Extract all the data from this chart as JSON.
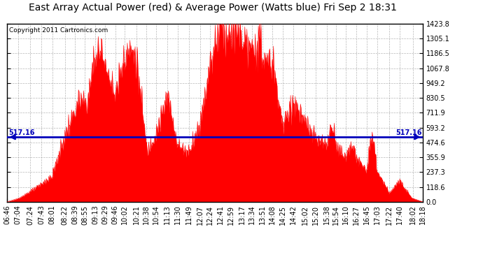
{
  "title": "East Array Actual Power (red) & Average Power (Watts blue) Fri Sep 2 18:31",
  "copyright": "Copyright 2011 Cartronics.com",
  "average_power": 517.16,
  "ymax": 1423.8,
  "yticks": [
    0.0,
    118.6,
    237.3,
    355.9,
    474.6,
    593.2,
    711.9,
    830.5,
    949.2,
    1067.8,
    1186.5,
    1305.1,
    1423.8
  ],
  "xtick_labels": [
    "06:46",
    "07:04",
    "07:24",
    "07:43",
    "08:01",
    "08:22",
    "08:39",
    "08:55",
    "09:13",
    "09:29",
    "09:46",
    "10:02",
    "10:21",
    "10:38",
    "10:54",
    "11:13",
    "11:30",
    "11:49",
    "12:07",
    "12:24",
    "12:41",
    "12:59",
    "13:17",
    "13:34",
    "13:51",
    "14:08",
    "14:25",
    "14:42",
    "15:02",
    "15:20",
    "15:38",
    "15:54",
    "16:10",
    "16:27",
    "16:45",
    "17:03",
    "17:22",
    "17:40",
    "18:02",
    "18:18"
  ],
  "fill_color": "#FF0000",
  "line_color": "#FF0000",
  "avg_line_color": "#0000BB",
  "background_color": "#FFFFFF",
  "grid_color": "#999999",
  "title_fontsize": 10,
  "copyright_fontsize": 6.5,
  "tick_fontsize": 7
}
